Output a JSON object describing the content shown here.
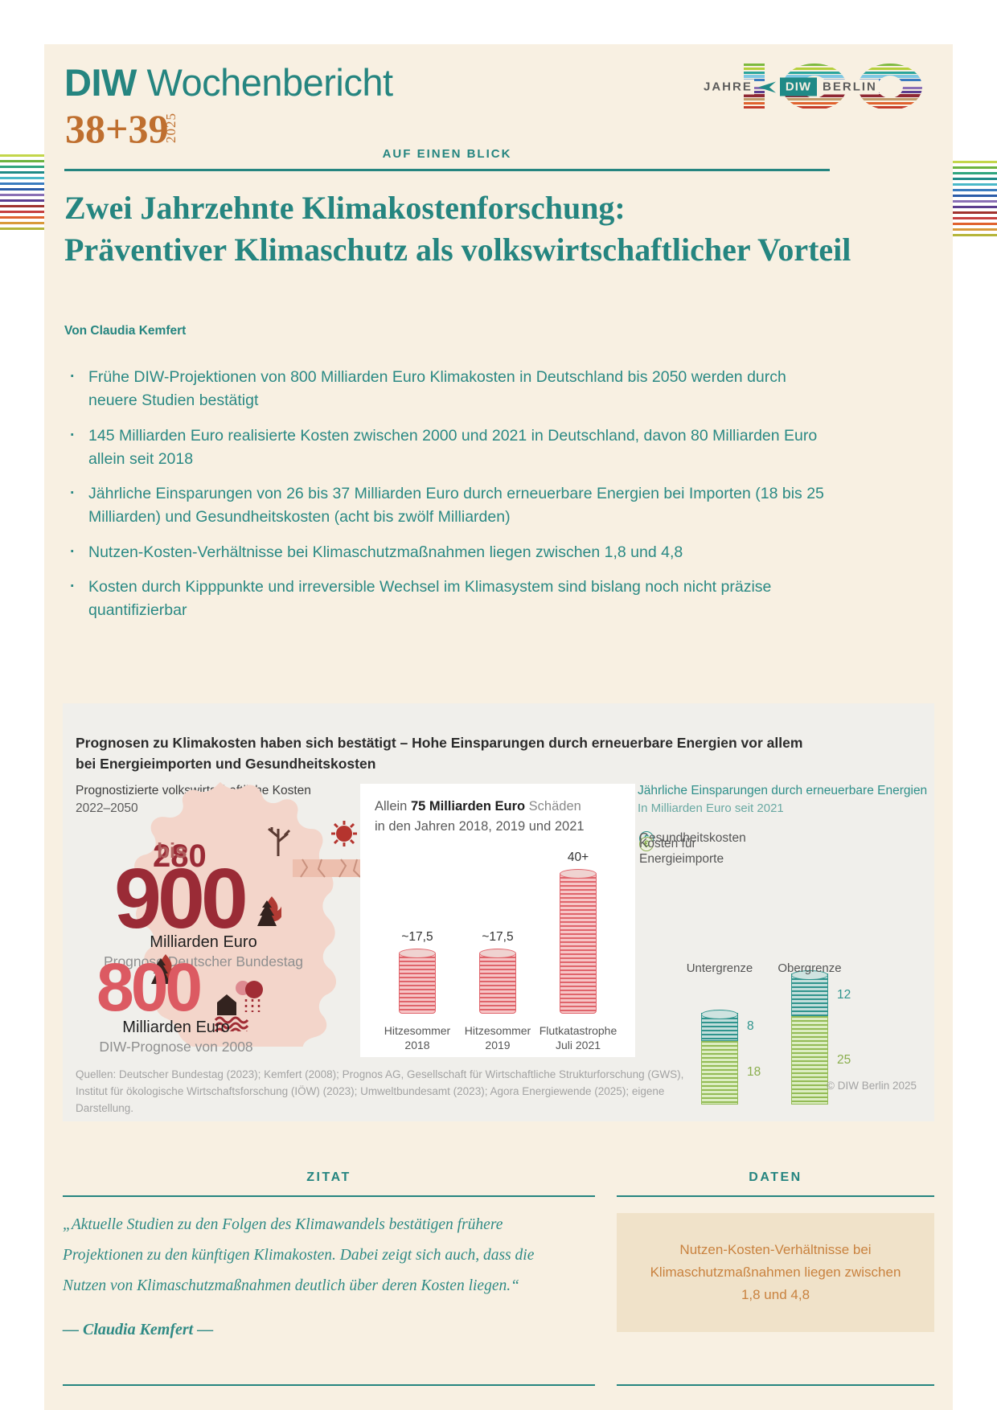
{
  "header": {
    "brand_bold": "DIW",
    "brand_regular": "Wochenbericht",
    "issue": "38+39",
    "issue_year": "2025",
    "kicker": "AUF EINEN BLICK",
    "logo": {
      "jahre": "JAHRE",
      "diw": "DIW",
      "berlin": "BERLIN"
    }
  },
  "title": {
    "line1": "Zwei Jahrzehnte Klimakostenforschung:",
    "line2": "Präventiver Klimaschutz als volkswirtschaftlicher Vorteil"
  },
  "author": "Von Claudia Kemfert",
  "bullets": [
    "Frühe DIW-Projektionen von 800 Milliarden Euro Klimakosten in Deutschland bis 2050 werden durch neuere Studien bestätigt",
    "145 Milliarden Euro realisierte Kosten zwischen 2000 und 2021 in Deutschland, davon 80 Milliarden Euro allein seit 2018",
    "Jährliche Einsparungen von 26 bis 37 Milliarden Euro durch erneuerbare Energien bei Importen (18 bis 25 Milliarden) und Gesundheitskosten (acht bis zwölf Milliarden)",
    "Nutzen-Kosten-Verhältnisse bei Klimaschutzmaßnahmen liegen zwischen 1,8 und 4,8",
    "Kosten durch Kipppunkte und irreversible Wechsel im Klimasystem sind bislang noch nicht präzise quantifizierbar"
  ],
  "figure": {
    "title": "Prognosen zu Klimakosten haben sich bestätigt – Hohe Einsparungen durch erneuerbare Energien vor allem bei Energieimporten und Gesundheitskosten",
    "left": {
      "heading": "Prognostizierte volkswirtschaftliche Kosten",
      "period": "2022–2050",
      "range_low": "280",
      "range_sep": "bis",
      "big_value": "900",
      "unit1": "Milliarden Euro",
      "source1": "Prognose Deutscher Bundestag",
      "big_value2": "800",
      "unit2": "Milliarden Euro",
      "source2": "DIW-Prognose von 2008"
    },
    "middle": {
      "intro_pre": "Allein",
      "intro_bold": "75 Milliarden Euro",
      "intro_post": "Schäden",
      "intro_line2": "in den Jahren 2018, 2019 und 2021"
    },
    "right": {
      "heading": "Jährliche Einsparungen durch erneuerbare Energien",
      "subheading": "In Milliarden Euro seit 2021",
      "legend": [
        {
          "label": "Gesundheitskosten"
        },
        {
          "label": "Kosten für Energieimporte"
        }
      ]
    },
    "sources": "Quellen: Deutscher Bundestag (2023); Kemfert (2008); Prognos AG, Gesellschaft für Wirtschaftliche Strukturforschung (GWS), Institut für ökologische Wirtschaftsforschung (IÖW) (2023); Umweltbundesamt (2023); Agora Energiewende (2025); eigene Darstellung.",
    "copyright": "© DIW Berlin 2025"
  },
  "chart_data": [
    {
      "type": "bar",
      "title": "Allein 75 Milliarden Euro Schäden in den Jahren 2018, 2019 und 2021",
      "categories": [
        "Hitzesommer 2018",
        "Hitzesommer 2019",
        "Flutkatastrophe Juli 2021"
      ],
      "values": [
        17.5,
        17.5,
        40
      ],
      "value_labels": [
        "~17,5",
        "~17,5",
        "40+"
      ],
      "unit": "Milliarden Euro",
      "ylim": [
        0,
        45
      ],
      "bar_color": "#e0646b",
      "bar_color_light": "#f6c5c6",
      "cap_color": "#efd3d1"
    },
    {
      "type": "bar",
      "stacked": true,
      "title": "Jährliche Einsparungen durch erneuerbare Energien",
      "subtitle": "In Milliarden Euro seit 2021",
      "categories": [
        "Untergrenze",
        "Obergrenze"
      ],
      "series": [
        {
          "name": "Gesundheitskosten",
          "values": [
            8,
            12
          ],
          "color": "#2f948d",
          "light": "#c2dedb",
          "cap": "#cfe3e0",
          "label_color": "#2f948d"
        },
        {
          "name": "Kosten für Energieimporte",
          "values": [
            18,
            25
          ],
          "color": "#93bb55",
          "light": "#dcedc2",
          "cap": "#e2efcc",
          "label_color": "#8aae4e"
        }
      ],
      "totals": [
        26,
        37
      ],
      "ylim": [
        0,
        40
      ],
      "legend_position": "top-left"
    }
  ],
  "zitat": {
    "heading": "ZITAT",
    "quote": "„Aktuelle Studien zu den Folgen des Klimawandels bestätigen frühere Projektionen zu den künftigen Klimakosten. Dabei zeigt sich auch, dass die Nutzen von Klimaschutzmaßnahmen deutlich über deren Kosten liegen.“",
    "attribution": "— Claudia Kemfert —"
  },
  "daten": {
    "heading": "DATEN",
    "highlight": "Nutzen-Kosten-Verhältnisse bei Klimaschutzmaßnahmen liegen zwischen 1,8 und 4,8"
  },
  "colors": {
    "teal": "#258580",
    "orange_issue": "#bf6f2f",
    "dark_red": "#9a2b36",
    "rose": "#dc5a62",
    "map_pink": "#f3d5ca",
    "card_bg": "#f8f0e2",
    "figure_bg": "#f0efeb",
    "daten_box_bg": "#f0e2c9",
    "daten_text": "#c9823f"
  },
  "decor": {
    "edge_stripe_colors": [
      "#c3d64a",
      "#6db33f",
      "#2fa57e",
      "#1f8a87",
      "#49b8c8",
      "#3a7bbf",
      "#2b5ca8",
      "#8a6fb5",
      "#5c3d8f",
      "#a0322e",
      "#c63f3f",
      "#e0622e",
      "#d99a3a",
      "#b5b53a"
    ],
    "logo_stripe_colors": [
      "#7cb93e",
      "#b5cf3a",
      "#2aa59b",
      "#7ec8e3",
      "#3a7bbf",
      "#f8f0e2",
      "#8a6fb5",
      "#5c3d8f",
      "#8f2834",
      "#c09a6a",
      "#e0622e",
      "#c43b2a"
    ]
  }
}
